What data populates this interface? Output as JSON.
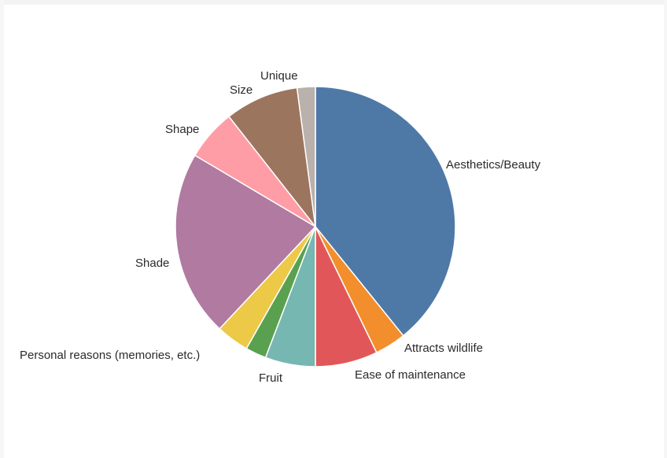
{
  "chart_data": {
    "type": "pie",
    "title": "",
    "series": [
      {
        "label": "Aesthetics/Beauty",
        "value": 39.2,
        "color": "#4e79a7"
      },
      {
        "label": "Attracts wildlife",
        "value": 3.6,
        "color": "#f28e2b"
      },
      {
        "label": "Ease of maintenance",
        "value": 7.2,
        "color": "#e15759"
      },
      {
        "label": "Fruit",
        "value": 5.8,
        "color": "#76b7b2"
      },
      {
        "label": "",
        "value": 2.4,
        "color": "#59a14f"
      },
      {
        "label": "Personal reasons (memories, etc.)",
        "value": 3.8,
        "color": "#edc948"
      },
      {
        "label": "Shade",
        "value": 21.5,
        "color": "#b07aa1"
      },
      {
        "label": "Shape",
        "value": 5.9,
        "color": "#ff9da7"
      },
      {
        "label": "Size",
        "value": 8.5,
        "color": "#9c755f"
      },
      {
        "label": "Unique",
        "value": 2.1,
        "color": "#bab0ac"
      }
    ],
    "start_angle": "12 o'clock",
    "direction": "clockwise",
    "legend": "none"
  }
}
